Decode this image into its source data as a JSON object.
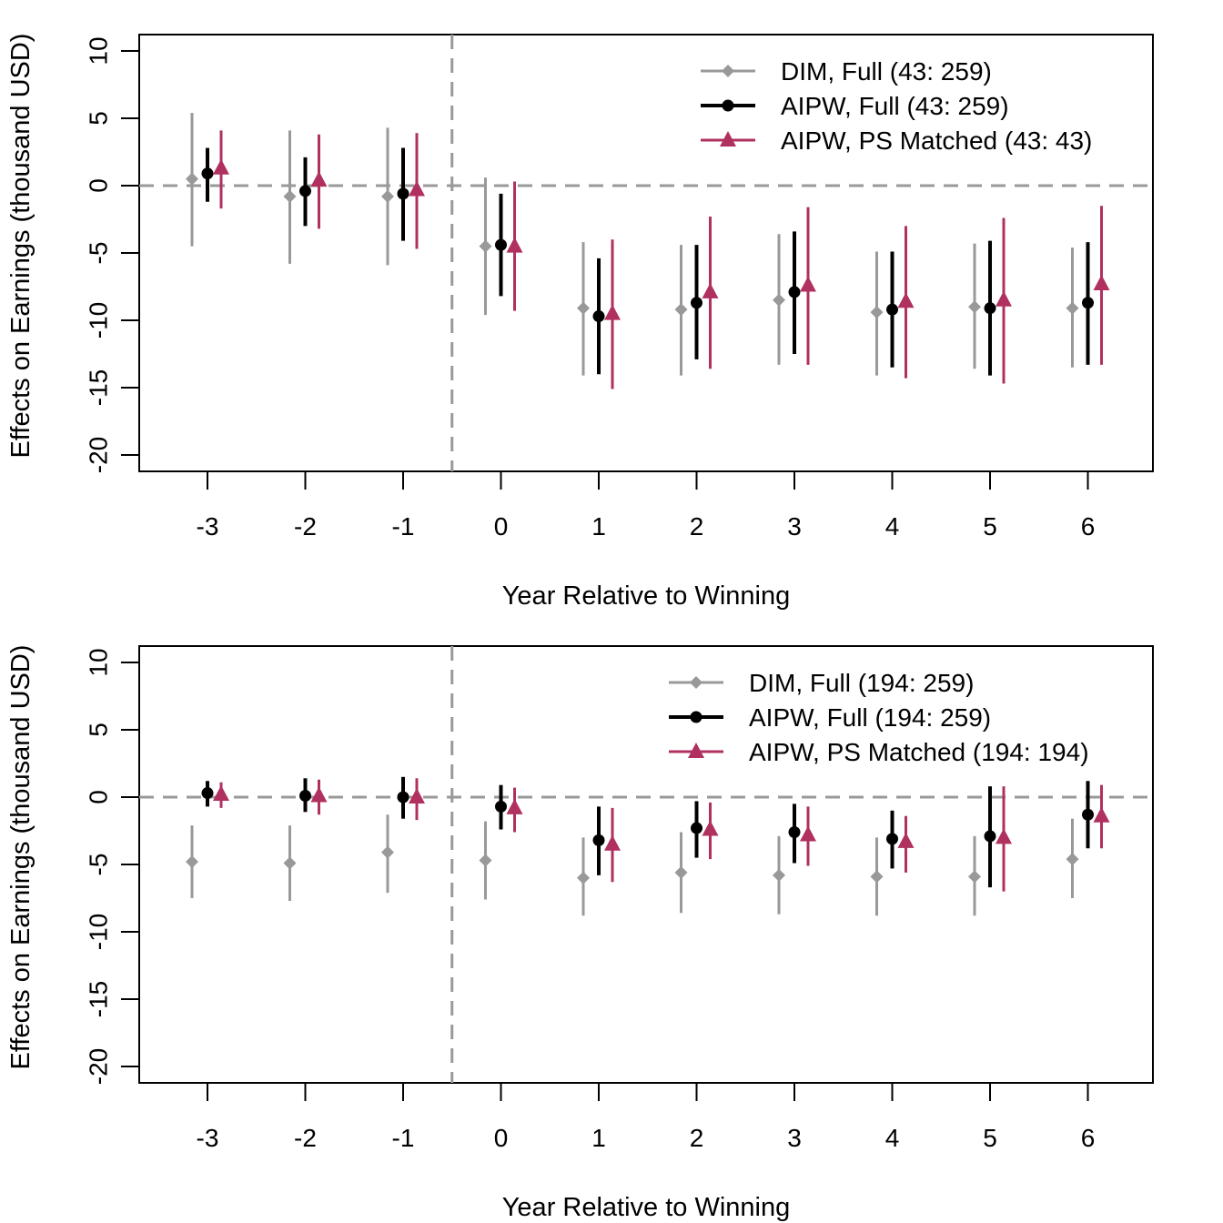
{
  "chart_data": [
    {
      "type": "scatter",
      "title": "",
      "xlabel": "Year Relative to Winning",
      "ylabel": "Effects on Earnings (thousand USD)",
      "x": [
        -3,
        -2,
        -1,
        0,
        1,
        2,
        3,
        4,
        5,
        6
      ],
      "xticks": [
        "-3",
        "-2",
        "-1",
        "0",
        "1",
        "2",
        "3",
        "4",
        "5",
        "6"
      ],
      "yticks": [
        "10",
        "5",
        "0",
        "-5",
        "-10",
        "-15",
        "-20"
      ],
      "ylim": [
        -21.2,
        10.8
      ],
      "reference_lines": {
        "horizontal_y": 0,
        "vertical_x": -0.5
      },
      "legend_position": "top-right",
      "series": [
        {
          "name": "DIM,  Full (43: 259)",
          "color": "#999999",
          "marker": "diamond",
          "estimate": [
            0.5,
            -0.8,
            -0.8,
            -4.5,
            -9.1,
            -9.2,
            -8.5,
            -9.4,
            -9.0,
            -9.1
          ],
          "lower": [
            -4.5,
            -5.8,
            -5.9,
            -9.6,
            -14.1,
            -14.1,
            -13.3,
            -14.1,
            -13.6,
            -13.5
          ],
          "upper": [
            5.4,
            4.1,
            4.3,
            0.6,
            -4.2,
            -4.4,
            -3.6,
            -4.9,
            -4.3,
            -4.6
          ]
        },
        {
          "name": "AIPW, Full (43: 259)",
          "color": "#000000",
          "marker": "circle",
          "estimate": [
            0.9,
            -0.4,
            -0.6,
            -4.4,
            -9.7,
            -8.7,
            -7.9,
            -9.2,
            -9.1,
            -8.7
          ],
          "lower": [
            -1.2,
            -3.0,
            -4.1,
            -8.2,
            -14.0,
            -12.9,
            -12.5,
            -13.5,
            -14.1,
            -13.3
          ],
          "upper": [
            2.8,
            2.1,
            2.8,
            -0.6,
            -5.4,
            -4.4,
            -3.4,
            -4.9,
            -4.1,
            -4.2
          ]
        },
        {
          "name": "AIPW, PS Matched (43: 43)",
          "color": "#B03060",
          "marker": "triangle",
          "estimate": [
            1.3,
            0.4,
            -0.3,
            -4.5,
            -9.5,
            -7.9,
            -7.4,
            -8.6,
            -8.5,
            -7.3
          ],
          "lower": [
            -1.7,
            -3.2,
            -4.7,
            -9.3,
            -15.1,
            -13.6,
            -13.3,
            -14.3,
            -14.7,
            -13.3
          ],
          "upper": [
            4.1,
            3.8,
            3.9,
            0.3,
            -4.0,
            -2.3,
            -1.6,
            -3.0,
            -2.4,
            -1.5
          ]
        }
      ]
    },
    {
      "type": "scatter",
      "title": "",
      "xlabel": "Year Relative to Winning",
      "ylabel": "Effects on Earnings (thousand USD)",
      "x": [
        -3,
        -2,
        -1,
        0,
        1,
        2,
        3,
        4,
        5,
        6
      ],
      "xticks": [
        "-3",
        "-2",
        "-1",
        "0",
        "1",
        "2",
        "3",
        "4",
        "5",
        "6"
      ],
      "yticks": [
        "10",
        "5",
        "0",
        "-5",
        "-10",
        "-15",
        "-20"
      ],
      "ylim": [
        -21.2,
        10.8
      ],
      "reference_lines": {
        "horizontal_y": 0,
        "vertical_x": -0.5
      },
      "legend_position": "top-right",
      "series": [
        {
          "name": "DIM,  Full (194: 259)",
          "color": "#999999",
          "marker": "diamond",
          "estimate": [
            -4.8,
            -4.9,
            -4.1,
            -4.7,
            -6.0,
            -5.6,
            -5.8,
            -5.9,
            -5.9,
            -4.6
          ],
          "lower": [
            -7.5,
            -7.7,
            -7.1,
            -7.6,
            -8.8,
            -8.6,
            -8.7,
            -8.8,
            -8.8,
            -7.5
          ],
          "upper": [
            -2.1,
            -2.1,
            -1.3,
            -1.8,
            -3.0,
            -2.6,
            -2.9,
            -3.0,
            -2.9,
            -1.6
          ]
        },
        {
          "name": "AIPW, Full (194: 259)",
          "color": "#000000",
          "marker": "circle",
          "estimate": [
            0.3,
            0.1,
            0.0,
            -0.7,
            -3.2,
            -2.3,
            -2.6,
            -3.1,
            -2.9,
            -1.3
          ],
          "lower": [
            -0.7,
            -1.1,
            -1.6,
            -2.4,
            -5.8,
            -4.5,
            -4.9,
            -5.3,
            -6.7,
            -3.8
          ],
          "upper": [
            1.2,
            1.4,
            1.5,
            0.9,
            -0.7,
            -0.3,
            -0.5,
            -1.0,
            0.8,
            1.2
          ]
        },
        {
          "name": "AIPW, PS Matched (194: 194)",
          "color": "#B03060",
          "marker": "triangle",
          "estimate": [
            0.2,
            0.1,
            0.0,
            -0.8,
            -3.5,
            -2.4,
            -2.8,
            -3.3,
            -3.0,
            -1.4
          ],
          "lower": [
            -0.8,
            -1.3,
            -1.7,
            -2.6,
            -6.3,
            -4.6,
            -5.1,
            -5.6,
            -7.0,
            -3.8
          ],
          "upper": [
            1.1,
            1.3,
            1.4,
            0.7,
            -0.8,
            -0.4,
            -0.7,
            -1.4,
            0.8,
            0.9
          ]
        }
      ]
    }
  ]
}
